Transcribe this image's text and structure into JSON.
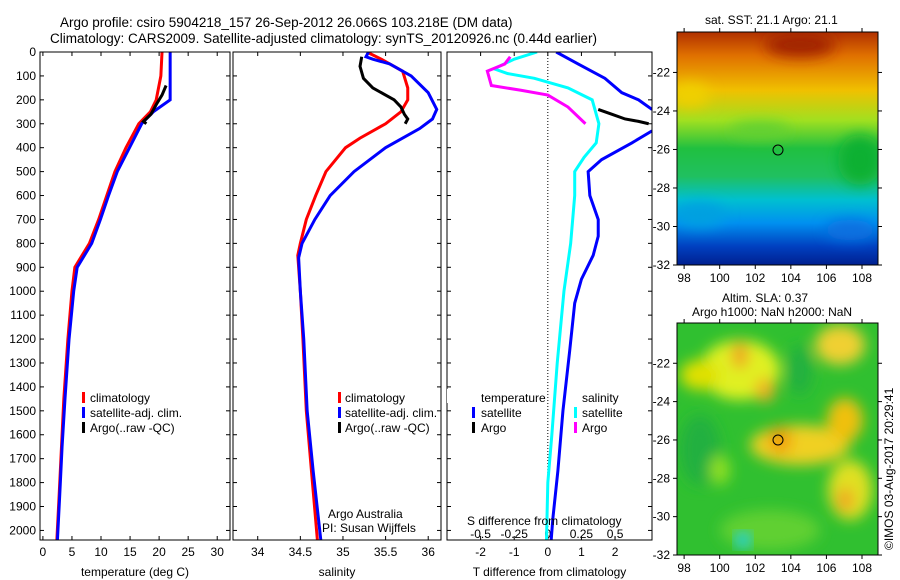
{
  "title": {
    "line1": "Argo profile: csiro 5904218_157 26-Sep-2012 26.066S 103.218E (DM data)",
    "line2": "Climatology: CARS2009. Satellite-adjusted climatology: synTS_20120926.nc (0.44d earlier)"
  },
  "colors": {
    "climatology": "#ff0000",
    "satellite": "#0000ff",
    "argo": "#000000",
    "sal_satellite": "#00ffff",
    "sal_argo": "#ff00ff"
  },
  "chart_data": [
    {
      "type": "line",
      "name": "temperature",
      "xlabel": "temperature (deg C)",
      "xlim": [
        -0.5,
        32.2
      ],
      "ylim": [
        0,
        2040
      ],
      "xticks": [
        0,
        5,
        10,
        15,
        20,
        25,
        30
      ],
      "yticks": [
        0,
        100,
        200,
        300,
        400,
        500,
        600,
        700,
        800,
        900,
        1000,
        1100,
        1200,
        1300,
        1400,
        1500,
        1600,
        1700,
        1800,
        1900,
        2000
      ],
      "legend": [
        "climatology",
        "satellite-adj. clim.",
        "Argo(..raw -QC)"
      ],
      "series": [
        {
          "name": "climatology",
          "color": "#ff0000",
          "points": [
            [
              20.5,
              0
            ],
            [
              20.3,
              100
            ],
            [
              19.5,
              200
            ],
            [
              18.5,
              250
            ],
            [
              16.5,
              300
            ],
            [
              14.3,
              400
            ],
            [
              12.4,
              500
            ],
            [
              11,
              600
            ],
            [
              9.6,
              700
            ],
            [
              8,
              800
            ],
            [
              5.5,
              900
            ],
            [
              5,
              1000
            ],
            [
              4.3,
              1200
            ],
            [
              3.6,
              1450
            ],
            [
              3.2,
              1650
            ],
            [
              2.8,
              1850
            ],
            [
              2.4,
              2040
            ]
          ]
        },
        {
          "name": "satellite-adj. clim.",
          "color": "#0000ff",
          "points": [
            [
              21.9,
              0
            ],
            [
              21.9,
              200
            ],
            [
              19,
              250
            ],
            [
              17,
              300
            ],
            [
              14.9,
              400
            ],
            [
              12.8,
              500
            ],
            [
              11.3,
              600
            ],
            [
              9.9,
              700
            ],
            [
              8.4,
              800
            ],
            [
              5.9,
              900
            ],
            [
              5.3,
              1000
            ],
            [
              4.5,
              1200
            ],
            [
              3.8,
              1450
            ],
            [
              3.3,
              1650
            ],
            [
              2.9,
              1850
            ],
            [
              2.5,
              2040
            ]
          ]
        },
        {
          "name": "Argo(..raw -QC)",
          "color": "#000000",
          "points": [
            [
              21.2,
              140
            ],
            [
              20.5,
              180
            ],
            [
              19.5,
              220
            ],
            [
              18.6,
              260
            ],
            [
              17.3,
              290
            ],
            [
              17.8,
              300
            ]
          ]
        }
      ]
    },
    {
      "type": "line",
      "name": "salinity",
      "xlabel": "salinity",
      "xlim": [
        33.71,
        36.15
      ],
      "ylim": [
        0,
        2040
      ],
      "xticks": [
        34,
        34.5,
        35,
        35.5,
        36
      ],
      "legend": [
        "climatology",
        "satellite-adj. clim.",
        "Argo(..raw -QC)"
      ],
      "annotation": [
        "Argo Australia",
        "PI: Susan Wijffels"
      ],
      "series": [
        {
          "name": "climatology",
          "color": "#ff0000",
          "points": [
            [
              35.28,
              0
            ],
            [
              35.45,
              30
            ],
            [
              35.7,
              80
            ],
            [
              35.76,
              150
            ],
            [
              35.76,
              200
            ],
            [
              35.68,
              250
            ],
            [
              35.5,
              300
            ],
            [
              35.2,
              360
            ],
            [
              35.03,
              400
            ],
            [
              34.8,
              500
            ],
            [
              34.68,
              600
            ],
            [
              34.57,
              700
            ],
            [
              34.5,
              800
            ],
            [
              34.47,
              850
            ],
            [
              34.5,
              1000
            ],
            [
              34.53,
              1200
            ],
            [
              34.57,
              1500
            ],
            [
              34.63,
              1750
            ],
            [
              34.7,
              2040
            ]
          ]
        },
        {
          "name": "satellite-adj. clim.",
          "color": "#0000ff",
          "points": [
            [
              35.3,
              0
            ],
            [
              35.27,
              20
            ],
            [
              35.35,
              30
            ],
            [
              35.55,
              50
            ],
            [
              35.8,
              100
            ],
            [
              36.0,
              170
            ],
            [
              36.1,
              240
            ],
            [
              36.05,
              280
            ],
            [
              35.9,
              320
            ],
            [
              35.5,
              400
            ],
            [
              35.13,
              500
            ],
            [
              34.85,
              600
            ],
            [
              34.67,
              700
            ],
            [
              34.52,
              800
            ],
            [
              34.48,
              860
            ],
            [
              34.5,
              1000
            ],
            [
              34.54,
              1200
            ],
            [
              34.58,
              1500
            ],
            [
              34.65,
              1750
            ],
            [
              34.74,
              2040
            ]
          ]
        },
        {
          "name": "Argo(..raw -QC)",
          "color": "#000000",
          "points": [
            [
              35.22,
              20
            ],
            [
              35.2,
              60
            ],
            [
              35.24,
              110
            ],
            [
              35.35,
              150
            ],
            [
              35.5,
              180
            ],
            [
              35.6,
              200
            ],
            [
              35.68,
              230
            ],
            [
              35.72,
              260
            ],
            [
              35.76,
              280
            ],
            [
              35.73,
              300
            ]
          ]
        }
      ]
    },
    {
      "type": "line",
      "name": "differences",
      "xlabel": "T difference from climatology",
      "x2label": "S difference from climatology",
      "xlim": [
        -3.0,
        3.1
      ],
      "ylim": [
        0,
        2040
      ],
      "xticks": [
        -2,
        -1,
        0,
        1,
        2
      ],
      "x2ticks": [
        -0.5,
        -0.25,
        0,
        0.25,
        0.5
      ],
      "legend_temperature": {
        "title": "temperature",
        "items": [
          "satellite",
          "Argo"
        ]
      },
      "legend_salinity": {
        "title": "salinity",
        "items": [
          "satellite",
          "Argo"
        ]
      },
      "series": [
        {
          "name": "temperature satellite",
          "axis": "T",
          "color": "#0000ff",
          "points": [
            [
              0.25,
              0
            ],
            [
              0.9,
              50
            ],
            [
              1.7,
              110
            ],
            [
              2.2,
              170
            ],
            [
              2.7,
              200
            ],
            [
              3.1,
              240
            ]
          ]
        },
        {
          "name": "temperature satellite (lower)",
          "axis": "T",
          "color": "#0000ff",
          "points": [
            [
              3.1,
              330
            ],
            [
              2.5,
              380
            ],
            [
              1.6,
              450
            ],
            [
              1.2,
              500
            ],
            [
              1.25,
              600
            ],
            [
              1.5,
              700
            ],
            [
              1.5,
              770
            ],
            [
              1.35,
              850
            ],
            [
              1.0,
              950
            ],
            [
              0.8,
              1050
            ],
            [
              0.65,
              1250
            ],
            [
              0.45,
              1500
            ],
            [
              0.3,
              1750
            ],
            [
              0.15,
              1950
            ],
            [
              0.1,
              2040
            ]
          ]
        },
        {
          "name": "temperature Argo",
          "axis": "T",
          "color": "#000000",
          "points": [
            [
              1.5,
              240
            ],
            [
              1.9,
              260
            ],
            [
              2.3,
              280
            ],
            [
              2.7,
              290
            ],
            [
              3.0,
              300
            ]
          ]
        },
        {
          "name": "salinity satellite",
          "axis": "S",
          "color": "#00ffff",
          "points": [
            [
              -0.08,
              0
            ],
            [
              -0.25,
              30
            ],
            [
              -0.4,
              70
            ],
            [
              -0.3,
              90
            ],
            [
              -0.1,
              110
            ],
            [
              0.15,
              150
            ],
            [
              0.33,
              200
            ],
            [
              0.38,
              300
            ],
            [
              0.36,
              380
            ],
            [
              0.27,
              440
            ],
            [
              0.2,
              500
            ],
            [
              0.2,
              600
            ],
            [
              0.17,
              800
            ],
            [
              0.12,
              1000
            ],
            [
              0.07,
              1300
            ],
            [
              0.03,
              1600
            ],
            [
              0,
              1800
            ],
            [
              -0.01,
              2040
            ]
          ]
        },
        {
          "name": "salinity Argo",
          "axis": "S",
          "color": "#ff00ff",
          "points": [
            [
              -0.28,
              20
            ],
            [
              -0.32,
              50
            ],
            [
              -0.45,
              80
            ],
            [
              -0.42,
              140
            ],
            [
              -0.2,
              160
            ],
            [
              0,
              180
            ],
            [
              0.15,
              230
            ],
            [
              0.28,
              300
            ]
          ]
        }
      ]
    },
    {
      "type": "heatmap",
      "name": "satellite SST map",
      "title": "sat. SST: 21.1  Argo: 21.1",
      "xlim": [
        97.6,
        108.9
      ],
      "ylim": [
        -32,
        -19.9
      ],
      "xticks": [
        98,
        100,
        102,
        104,
        106,
        108
      ],
      "yticks": [
        -22,
        -24,
        -26,
        -28,
        -30,
        -32
      ],
      "argo_position": [
        103.2,
        -26.07
      ]
    },
    {
      "type": "heatmap",
      "name": "altimetry SLA map",
      "title": "Altim. SLA: 0.37",
      "subtitle": "Argo h1000: NaN h2000: NaN",
      "xlim": [
        97.6,
        108.9
      ],
      "ylim": [
        -32,
        -19.9
      ],
      "xticks": [
        98,
        100,
        102,
        104,
        106,
        108
      ],
      "yticks": [
        -22,
        -24,
        -26,
        -28,
        -30,
        -32
      ],
      "argo_position": [
        103.2,
        -26.07
      ]
    }
  ],
  "credit": "©IMOS 03-Aug-2017 20:29:41"
}
